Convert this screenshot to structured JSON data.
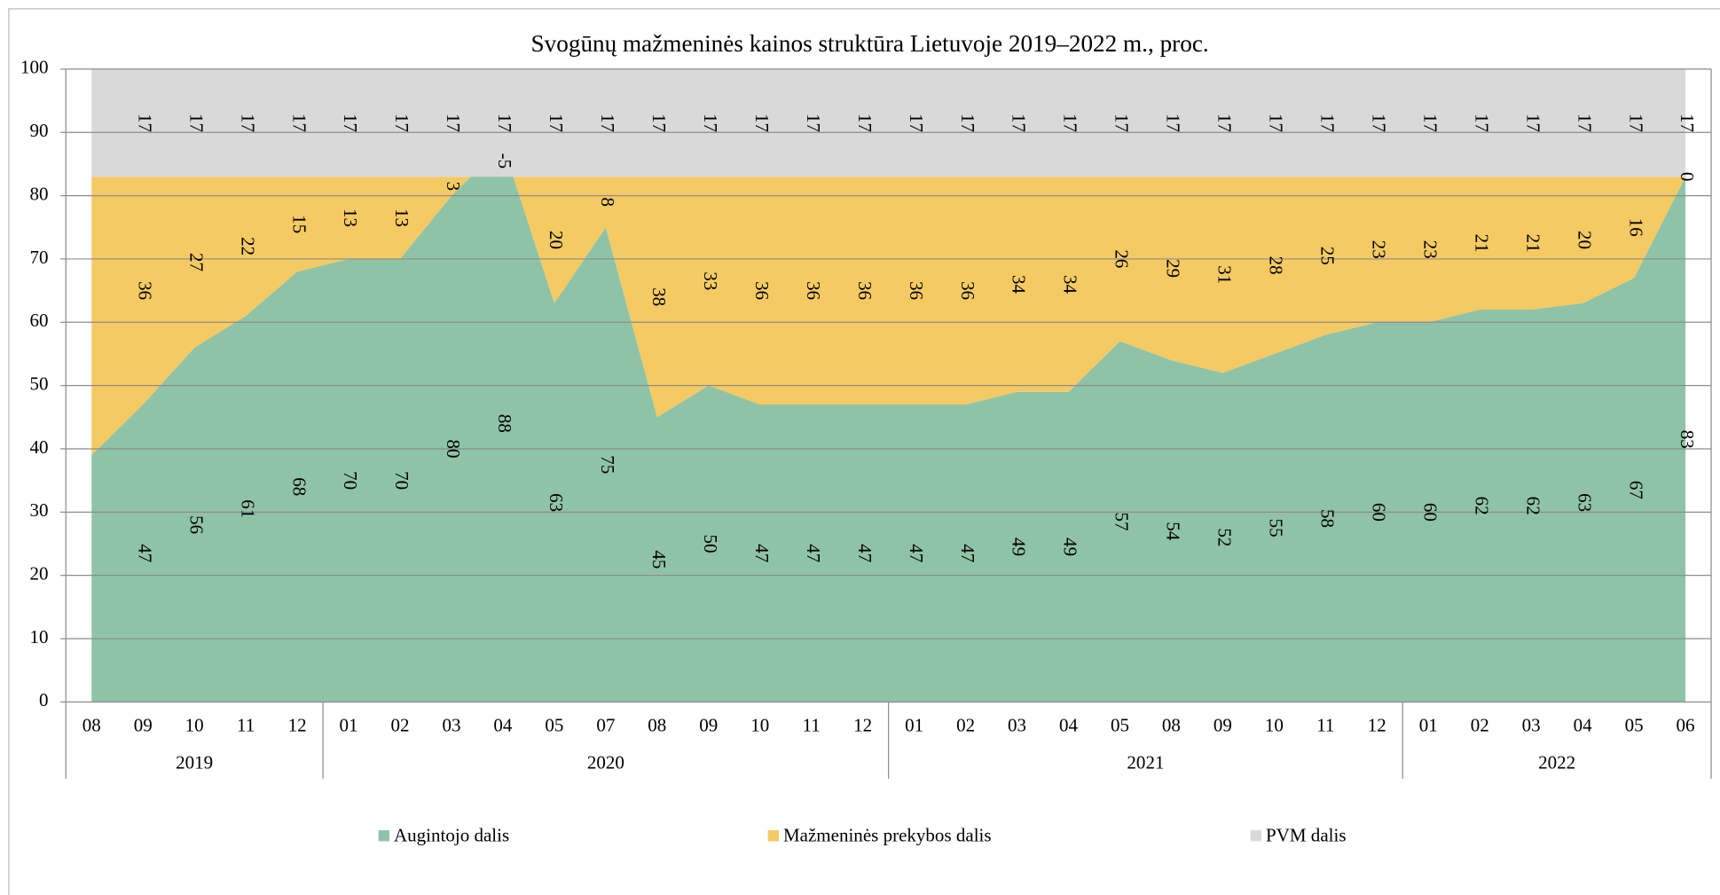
{
  "chart_data": {
    "type": "stacked_area",
    "title": "Svogūnų mažmeninės kainos struktūra Lietuvoje 2019–2022 m., proc.",
    "groups": [
      {
        "name": "2019",
        "categories": [
          "08",
          "09",
          "10",
          "11",
          "12"
        ]
      },
      {
        "name": "2020",
        "categories": [
          "01",
          "02",
          "03",
          "04",
          "05",
          "07",
          "08",
          "09",
          "10",
          "11",
          "12"
        ]
      },
      {
        "name": "2021",
        "categories": [
          "01",
          "02",
          "03",
          "04",
          "05",
          "08",
          "09",
          "10",
          "11",
          "12"
        ]
      },
      {
        "name": "2022",
        "categories": [
          "01",
          "02",
          "03",
          "04",
          "05",
          "06"
        ]
      }
    ],
    "series": [
      {
        "name": "Augintojo dalis",
        "color": "#8fc3a7",
        "values": [
          39,
          47,
          56,
          61,
          68,
          70,
          70,
          80,
          88,
          63,
          75,
          45,
          50,
          47,
          47,
          47,
          47,
          47,
          49,
          49,
          57,
          54,
          52,
          55,
          58,
          60,
          60,
          62,
          62,
          63,
          67,
          83
        ],
        "value_labels": [
          null,
          "47",
          "56",
          "61",
          "68",
          "70",
          "70",
          "80",
          "88",
          "63",
          "75",
          "45",
          "50",
          "47",
          "47",
          "47",
          "47",
          "47",
          "49",
          "49",
          "57",
          "54",
          "52",
          "55",
          "58",
          "60",
          "60",
          "62",
          "62",
          "63",
          "67",
          "83"
        ]
      },
      {
        "name": "Mažmeninės prekybos dalis",
        "color": "#f5ca63",
        "values": [
          44,
          36,
          27,
          22,
          15,
          13,
          13,
          3,
          -5,
          20,
          8,
          38,
          33,
          36,
          36,
          36,
          36,
          36,
          34,
          34,
          26,
          29,
          31,
          28,
          25,
          23,
          23,
          21,
          21,
          20,
          16,
          0
        ],
        "value_labels": [
          null,
          "36",
          "27",
          "22",
          "15",
          "13",
          "13",
          "3",
          "-5",
          "20",
          "8",
          "38",
          "33",
          "36",
          "36",
          "36",
          "36",
          "36",
          "34",
          "34",
          "26",
          "29",
          "31",
          "28",
          "25",
          "23",
          "23",
          "21",
          "21",
          "20",
          "16",
          "0"
        ]
      },
      {
        "name": "PVM dalis",
        "color": "#d9d9d9",
        "values": [
          17,
          17,
          17,
          17,
          17,
          17,
          17,
          17,
          17,
          17,
          17,
          17,
          17,
          17,
          17,
          17,
          17,
          17,
          17,
          17,
          17,
          17,
          17,
          17,
          17,
          17,
          17,
          17,
          17,
          17,
          17,
          17
        ],
        "value_labels": [
          null,
          "17",
          "17",
          "17",
          "17",
          "17",
          "17",
          "17",
          "17",
          "17",
          "17",
          "17",
          "17",
          "17",
          "17",
          "17",
          "17",
          "17",
          "17",
          "17",
          "17",
          "17",
          "17",
          "17",
          "17",
          "17",
          "17",
          "17",
          "17",
          "17",
          "17",
          "17"
        ]
      }
    ],
    "ylim": [
      0,
      100
    ],
    "yticks": [
      0,
      10,
      20,
      30,
      40,
      50,
      60,
      70,
      80,
      90,
      100
    ],
    "grid": true,
    "legend": "bottom"
  }
}
